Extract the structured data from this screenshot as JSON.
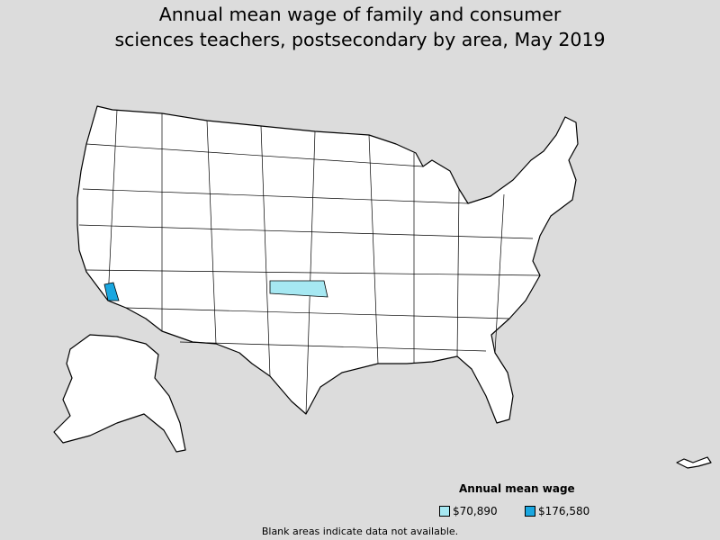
{
  "title": {
    "line1": "Annual mean wage of family and consumer",
    "line2": "sciences teachers, postsecondary by area, May 2019"
  },
  "legend": {
    "title": "Annual mean wage",
    "items": [
      {
        "label": "$70,890",
        "color": "#a6e8f2"
      },
      {
        "label": "$176,580",
        "color": "#1aa7e0"
      }
    ]
  },
  "note": "Blank areas indicate data not available.",
  "colors": {
    "background": "#dcdcdc",
    "land": "#ffffff",
    "border": "#000000"
  }
}
